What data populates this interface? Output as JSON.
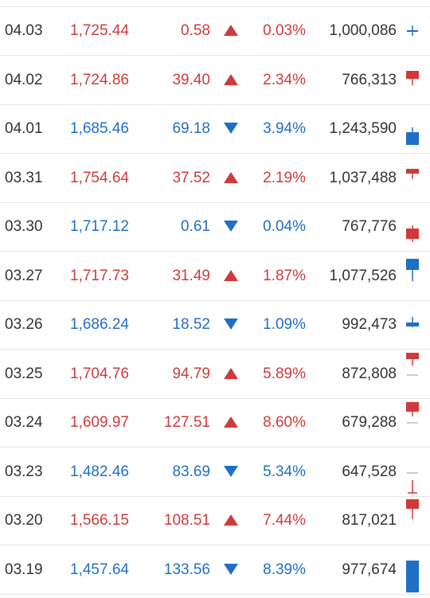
{
  "colors": {
    "up": "#d03a3a",
    "down": "#1f6fc7",
    "text": "#333333",
    "divider": "#e6e6e6"
  },
  "rows": [
    {
      "date": "04.03",
      "price": "1,725.44",
      "change": "0.58",
      "dir": "up",
      "rate": "0.03%",
      "volume": "1,000,086",
      "candle_icon": "flat-cross-candle-icon"
    },
    {
      "date": "04.02",
      "price": "1,724.86",
      "change": "39.40",
      "dir": "up",
      "rate": "2.34%",
      "volume": "766,313",
      "candle_icon": "up-candle-icon"
    },
    {
      "date": "04.01",
      "price": "1,685.46",
      "change": "69.18",
      "dir": "down",
      "rate": "3.94%",
      "volume": "1,243,590",
      "candle_icon": "down-candle-icon"
    },
    {
      "date": "03.31",
      "price": "1,754.64",
      "change": "37.52",
      "dir": "up",
      "rate": "2.19%",
      "volume": "1,037,488",
      "candle_icon": "up-candle-icon"
    },
    {
      "date": "03.30",
      "price": "1,717.12",
      "change": "0.61",
      "dir": "down",
      "rate": "0.04%",
      "volume": "767,776",
      "candle_icon": "up-candle-icon"
    },
    {
      "date": "03.27",
      "price": "1,717.73",
      "change": "31.49",
      "dir": "up",
      "rate": "1.87%",
      "volume": "1,077,526",
      "candle_icon": "down-candle-icon"
    },
    {
      "date": "03.26",
      "price": "1,686.24",
      "change": "18.52",
      "dir": "down",
      "rate": "1.09%",
      "volume": "992,473",
      "candle_icon": "down-candle-icon"
    },
    {
      "date": "03.25",
      "price": "1,704.76",
      "change": "94.79",
      "dir": "up",
      "rate": "5.89%",
      "volume": "872,808",
      "candle_icon": "up-candle-icon"
    },
    {
      "date": "03.24",
      "price": "1,609.97",
      "change": "127.51",
      "dir": "up",
      "rate": "8.60%",
      "volume": "679,288",
      "candle_icon": "up-candle-icon"
    },
    {
      "date": "03.23",
      "price": "1,482.46",
      "change": "83.69",
      "dir": "down",
      "rate": "5.34%",
      "volume": "647,528",
      "candle_icon": "flat-candle-icon"
    },
    {
      "date": "03.20",
      "price": "1,566.15",
      "change": "108.51",
      "dir": "up",
      "rate": "7.44%",
      "volume": "817,021",
      "candle_icon": "up-candle-icon"
    },
    {
      "date": "03.19",
      "price": "1,457.64",
      "change": "133.56",
      "dir": "down",
      "rate": "8.39%",
      "volume": "977,674",
      "candle_icon": "down-candle-icon"
    }
  ]
}
